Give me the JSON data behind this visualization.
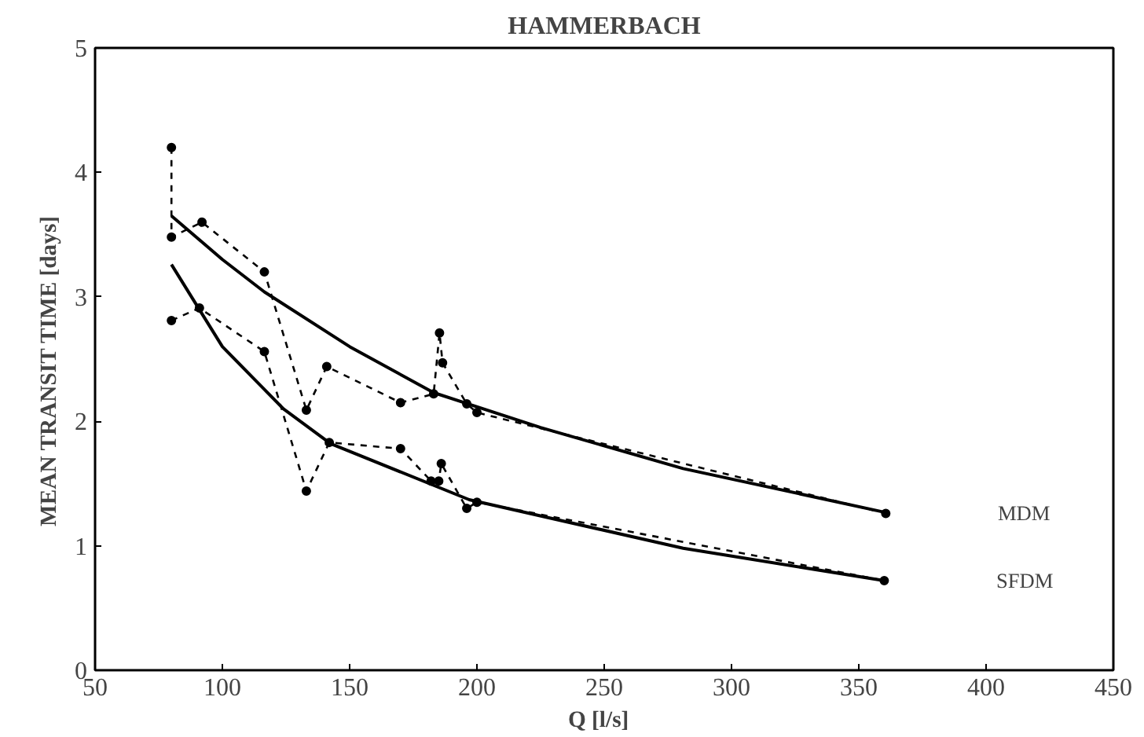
{
  "chart_data": {
    "type": "line",
    "title": "HAMMERBACH",
    "xlabel": "Q   [l/s]",
    "ylabel": "MEAN  TRANSIT  TIME   [days]",
    "xlim": [
      50,
      450
    ],
    "ylim": [
      0,
      5
    ],
    "xticks": [
      50,
      100,
      150,
      200,
      250,
      300,
      350,
      400,
      450
    ],
    "yticks": [
      0,
      1,
      2,
      3,
      4,
      5
    ],
    "grid": false,
    "series": [
      {
        "name": "MDM",
        "color": "#000000",
        "line_style": "dashed",
        "marker": "circle",
        "x": [
          80,
          80,
          92,
          116.5,
          133,
          141,
          170,
          183,
          185.3,
          186.5,
          196,
          200,
          360.6
        ],
        "values": [
          4.2,
          3.48,
          3.6,
          3.2,
          2.09,
          2.44,
          2.15,
          2.22,
          2.71,
          2.47,
          2.14,
          2.07,
          1.26
        ]
      },
      {
        "name": "SFDM",
        "color": "#000000",
        "line_style": "dashed",
        "marker": "circle",
        "x": [
          80,
          91,
          116.5,
          133,
          142,
          170,
          182,
          185,
          186,
          196,
          200,
          360
        ],
        "values": [
          2.81,
          2.91,
          2.56,
          1.44,
          1.83,
          1.78,
          1.52,
          1.52,
          1.66,
          1.3,
          1.35,
          0.72
        ]
      },
      {
        "color": "#000000",
        "line_style": "solid",
        "marker": "none",
        "x": [
          80,
          100,
          116.5,
          150,
          183,
          225,
          281,
          360
        ],
        "values": [
          3.65,
          3.3,
          3.04,
          2.6,
          2.23,
          1.95,
          1.62,
          1.27
        ]
      },
      {
        "color": "#000000",
        "line_style": "solid",
        "marker": "none",
        "x": [
          80,
          100,
          124,
          142.5,
          197,
          281,
          360
        ],
        "values": [
          3.26,
          2.6,
          2.1,
          1.82,
          1.37,
          0.98,
          0.72
        ]
      }
    ]
  }
}
